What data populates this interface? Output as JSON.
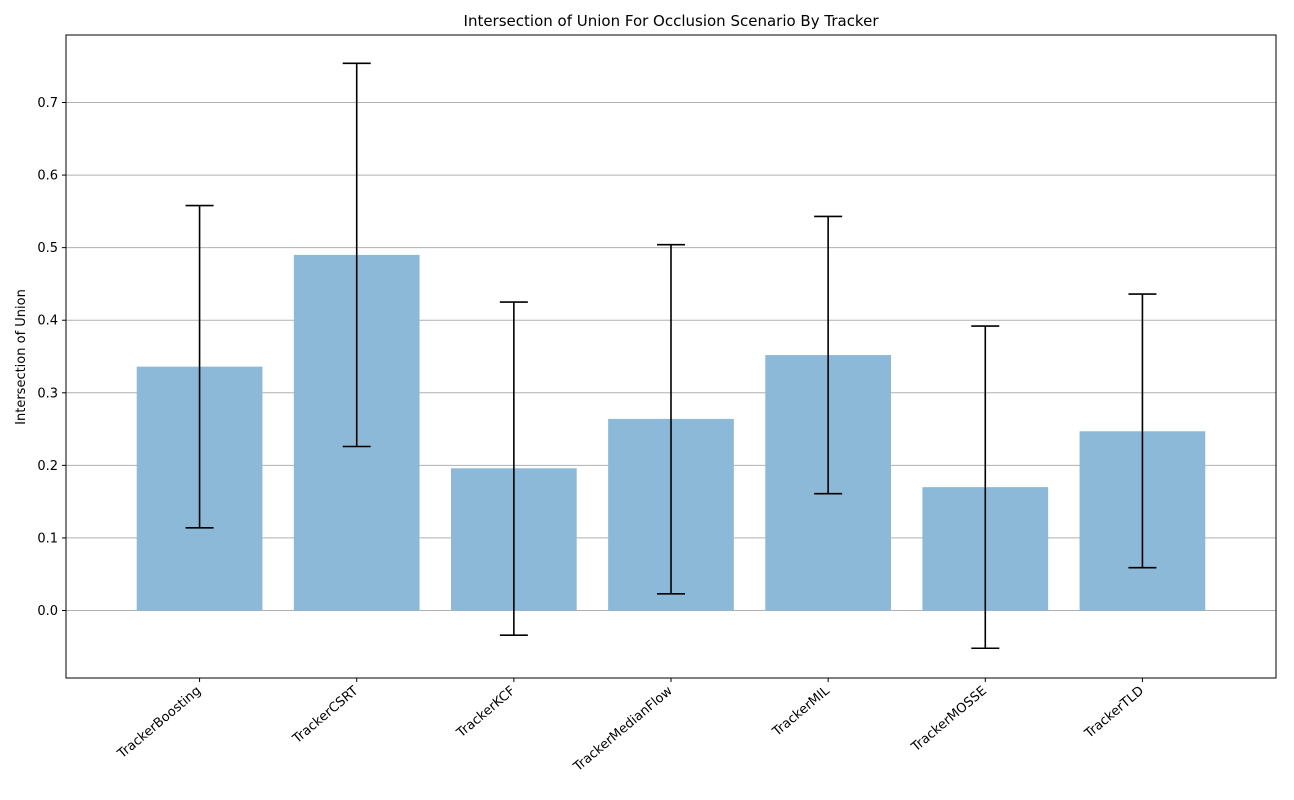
{
  "chart_data": {
    "type": "bar",
    "title": "Intersection of Union For Occlusion Scenario By Tracker",
    "xlabel": "",
    "ylabel": "Intersection of Union",
    "categories": [
      "TrackerBoosting",
      "TrackerCSRT",
      "TrackerKCF",
      "TrackerMedianFlow",
      "TrackerMIL",
      "TrackerMOSSE",
      "TrackerTLD"
    ],
    "values": [
      0.336,
      0.49,
      0.196,
      0.264,
      0.352,
      0.17,
      0.247
    ],
    "error_low": [
      0.114,
      0.226,
      -0.034,
      0.023,
      0.161,
      -0.052,
      0.059
    ],
    "error_high": [
      0.558,
      0.754,
      0.425,
      0.504,
      0.543,
      0.392,
      0.436
    ],
    "ylim": [
      -0.093,
      0.793
    ],
    "yticks": [
      0.0,
      0.1,
      0.2,
      0.3,
      0.4,
      0.5,
      0.6,
      0.7
    ],
    "ytick_labels": [
      "0.0",
      "0.1",
      "0.2",
      "0.3",
      "0.4",
      "0.5",
      "0.6",
      "0.7"
    ],
    "grid": "y",
    "bar_color": "#8db9d8",
    "error_color": "#000000",
    "grid_color": "#b0b0b0"
  }
}
